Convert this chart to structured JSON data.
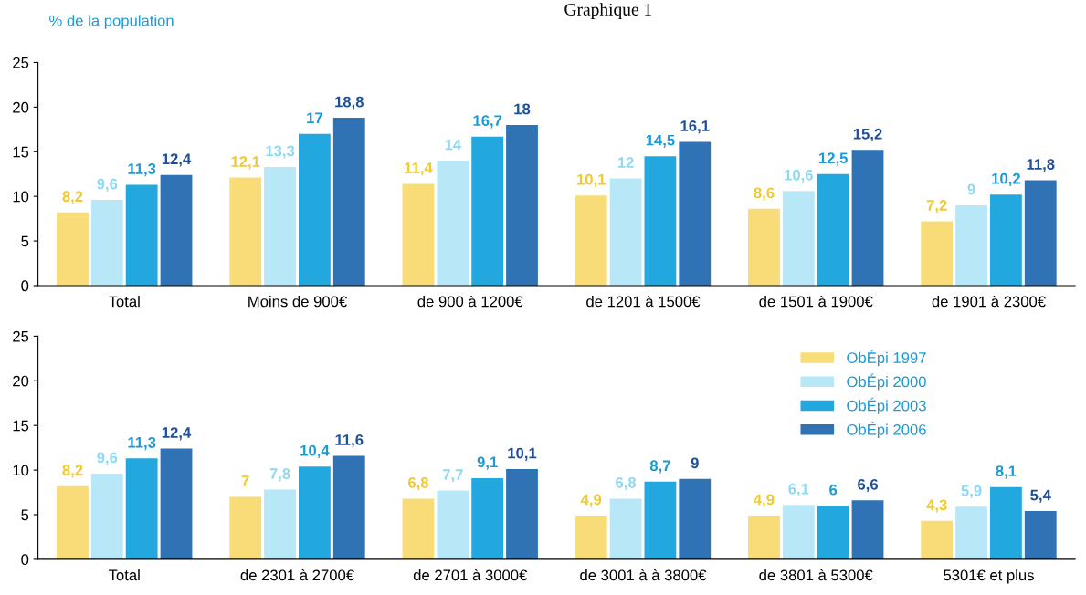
{
  "chart_data": [
    {
      "type": "bar",
      "title": "Graphique 1",
      "ylabel": "% de la population",
      "categories": [
        "Total",
        "Moins de 900€",
        "de 900 à 1200€",
        "de 1201 à 1500€",
        "de 1501 à 1900€",
        "de 1901 à 2300€"
      ],
      "series": [
        {
          "color": "#f7dc78",
          "values": [
            8.2,
            12.1,
            11.4,
            10.1,
            8.6,
            7.2
          ],
          "value_labels": [
            "8,2",
            "12,1",
            "11,4",
            "10,1",
            "8,6",
            "7,2"
          ]
        },
        {
          "color": "#b8e8f8",
          "values": [
            9.6,
            13.3,
            14,
            12,
            10.6,
            9
          ],
          "value_labels": [
            "9,6",
            "13,3",
            "14",
            "12",
            "10,6",
            "9"
          ]
        },
        {
          "color": "#22a8df",
          "values": [
            11.3,
            17,
            16.7,
            14.5,
            12.5,
            10.2
          ],
          "value_labels": [
            "11,3",
            "17",
            "16,7",
            "14,5",
            "12,5",
            "10,2"
          ]
        },
        {
          "color": "#2f73b5",
          "values": [
            12.4,
            18.8,
            18,
            16.1,
            15.2,
            11.8
          ],
          "value_labels": [
            "12,4",
            "18,8",
            "18",
            "16,1",
            "15,2",
            "11,8"
          ]
        }
      ],
      "ylim": [
        0,
        25
      ],
      "yticks": [
        0,
        5,
        10,
        15,
        20,
        25
      ],
      "grid": false,
      "legend": false
    },
    {
      "type": "bar",
      "categories": [
        "Total",
        "de 2301 à 2700€",
        "de 2701 à 3000€",
        "de 3001 à à 3800€",
        "de 3801 à 5300€",
        "5301€ et plus"
      ],
      "series": [
        {
          "name": "ObÉpi 1997",
          "color": "#f7dc78",
          "values": [
            8.2,
            7,
            6.8,
            4.9,
            4.9,
            4.3
          ],
          "value_labels": [
            "8,2",
            "7",
            "6,8",
            "4,9",
            "4,9",
            "4,3"
          ]
        },
        {
          "name": "ObÉpi 2000",
          "color": "#b8e8f8",
          "values": [
            9.6,
            7.8,
            7.7,
            6.8,
            6.1,
            5.9
          ],
          "value_labels": [
            "9,6",
            "7,8",
            "7,7",
            "6,8",
            "6,1",
            "5,9"
          ]
        },
        {
          "name": "ObÉpi 2003",
          "color": "#22a8df",
          "values": [
            11.3,
            10.4,
            9.1,
            8.7,
            6,
            8.1
          ],
          "value_labels": [
            "11,3",
            "10,4",
            "9,1",
            "8,7",
            "6",
            "8,1"
          ]
        },
        {
          "name": "ObÉpi 2006",
          "color": "#2f73b5",
          "values": [
            12.4,
            11.6,
            10.1,
            9,
            6.6,
            5.4
          ],
          "value_labels": [
            "12,4",
            "11,6",
            "10,1",
            "9",
            "6,6",
            "5,4"
          ]
        }
      ],
      "ylim": [
        0,
        25
      ],
      "yticks": [
        0,
        5,
        10,
        15,
        20,
        25
      ],
      "grid": false,
      "legend": "top right"
    }
  ]
}
